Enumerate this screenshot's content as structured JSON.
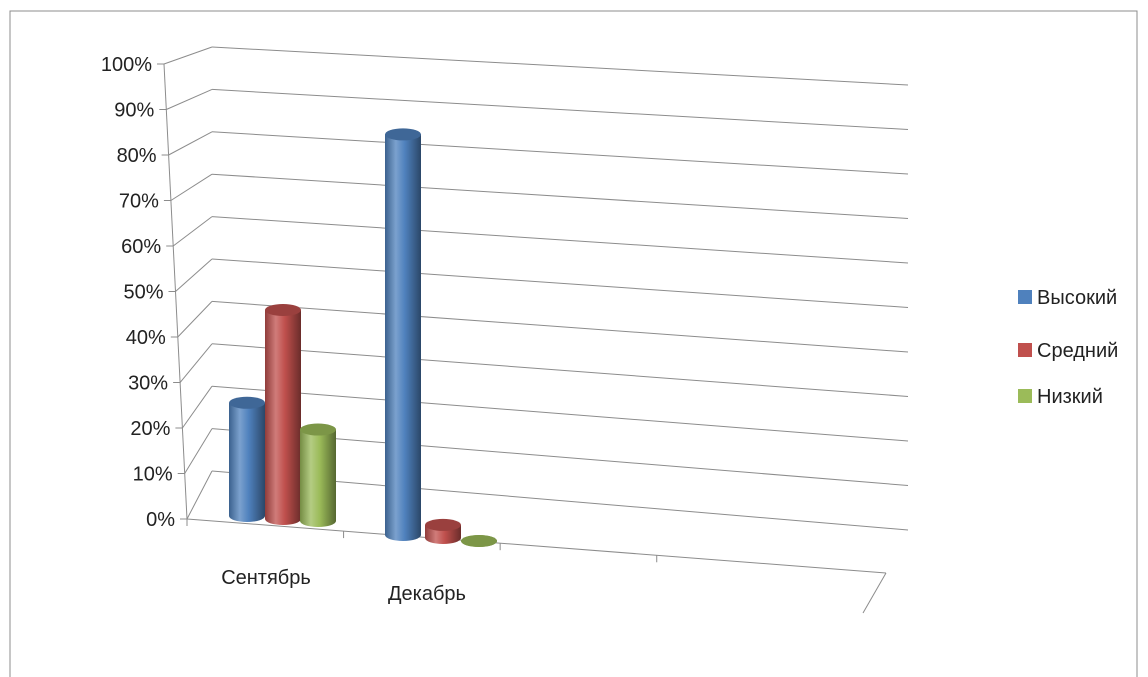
{
  "chart_data": {
    "type": "bar",
    "categories": [
      "Сентябрь",
      "Декабрь"
    ],
    "series": [
      {
        "name": "Высокий",
        "values": [
          26,
          92
        ],
        "color": "#4F81BD"
      },
      {
        "name": "Средний",
        "values": [
          48,
          3
        ],
        "color": "#C0504D"
      },
      {
        "name": "Низкий",
        "values": [
          21,
          0
        ],
        "color": "#9BBB59"
      }
    ],
    "yticks": [
      "0%",
      "10%",
      "20%",
      "30%",
      "40%",
      "50%",
      "60%",
      "70%",
      "80%",
      "90%",
      "100%"
    ],
    "ylim": [
      0,
      100
    ],
    "title": "",
    "xlabel": "",
    "ylabel": "",
    "grid": true,
    "legend_position": "right",
    "style": "3d-cylinder"
  }
}
